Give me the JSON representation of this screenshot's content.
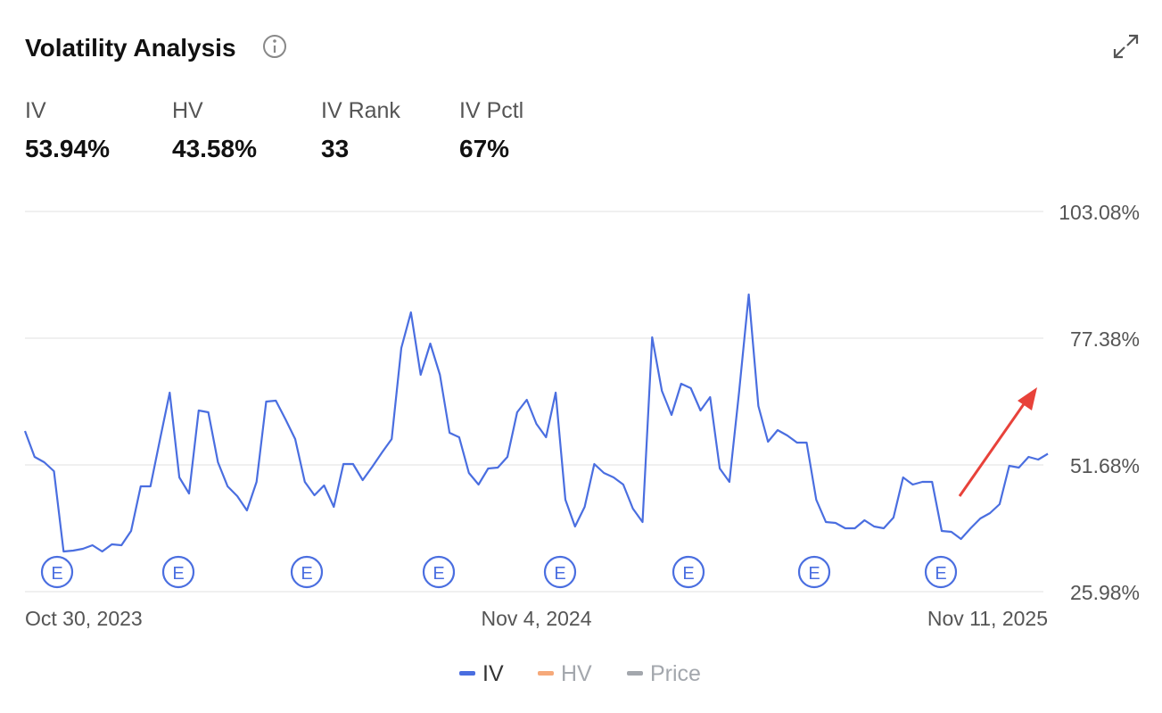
{
  "header": {
    "title": "Volatility Analysis"
  },
  "stats": [
    {
      "label": "IV",
      "value": "53.94%"
    },
    {
      "label": "HV",
      "value": "43.58%"
    },
    {
      "label": "IV Rank",
      "value": "33"
    },
    {
      "label": "IV Pctl",
      "value": "67%"
    }
  ],
  "chart_data": {
    "type": "line",
    "categories": [
      "Oct 30, 2023",
      null,
      null,
      null,
      null,
      null,
      null,
      null,
      null,
      null,
      null,
      null,
      null,
      null,
      null,
      null,
      null,
      null,
      null,
      null,
      null,
      null,
      null,
      null,
      null,
      null,
      null,
      null,
      null,
      null,
      null,
      null,
      null,
      null,
      null,
      null,
      null,
      null,
      null,
      null,
      null,
      null,
      null,
      null,
      null,
      null,
      null,
      null,
      null,
      null,
      null,
      null,
      null,
      "Nov 4, 2024",
      null,
      null,
      null,
      null,
      null,
      null,
      null,
      null,
      null,
      null,
      null,
      null,
      null,
      null,
      null,
      null,
      null,
      null,
      null,
      null,
      null,
      null,
      null,
      null,
      null,
      null,
      null,
      null,
      null,
      null,
      null,
      null,
      null,
      null,
      null,
      null,
      null,
      null,
      null,
      null,
      null,
      null,
      null,
      null,
      null,
      null,
      null,
      null,
      null,
      null,
      null,
      null,
      "Nov 11, 2025"
    ],
    "series": [
      {
        "name": "IV",
        "color": "#4a6ee0",
        "values": [
          58.56,
          53.31,
          52.22,
          50.41,
          34.12,
          34.31,
          34.67,
          35.39,
          34.12,
          35.57,
          35.39,
          38.29,
          47.34,
          47.34,
          56.93,
          66.34,
          49.15,
          45.89,
          62.72,
          62.36,
          52.22,
          47.34,
          45.35,
          42.45,
          48.24,
          64.53,
          64.71,
          60.91,
          56.93,
          48.24,
          45.53,
          47.52,
          43.17,
          51.86,
          51.86,
          48.6,
          51.32,
          54.22,
          56.93,
          75.39,
          82.63,
          69.96,
          76.3,
          69.96,
          58.2,
          57.29,
          50.05,
          47.7,
          50.96,
          51.14,
          53.31,
          62.36,
          64.89,
          60.01,
          57.29,
          66.34,
          44.62,
          39.19,
          43.17,
          51.86,
          50.05,
          49.15,
          47.7,
          42.81,
          40.1,
          77.56,
          66.7,
          61.82,
          68.15,
          67.25,
          62.72,
          65.44,
          50.96,
          48.24,
          66.34,
          86.25,
          63.63,
          56.39,
          58.74,
          57.65,
          56.21,
          56.21,
          44.62,
          40.1,
          39.92,
          38.83,
          38.83,
          40.46,
          39.19,
          38.83,
          41.0,
          49.15,
          47.7,
          48.24,
          48.24,
          38.29,
          38.11,
          36.66,
          38.83,
          40.82,
          41.91,
          43.72,
          51.5,
          51.14,
          53.31,
          52.77,
          53.94
        ]
      }
    ],
    "ylim": [
      25.98,
      103.08
    ],
    "yticks": [
      {
        "value": 25.98,
        "label": "25.98%"
      },
      {
        "value": 51.68,
        "label": "51.68%"
      },
      {
        "value": 77.38,
        "label": "77.38%"
      },
      {
        "value": 103.08,
        "label": "103.08%"
      }
    ],
    "grid": true,
    "earnings_label": "E",
    "legend": [
      {
        "name": "IV",
        "color": "#4a6ee0",
        "active": true
      },
      {
        "name": "HV",
        "color": "#f6a97a",
        "active": false
      },
      {
        "name": "Price",
        "color": "#a3a7ad",
        "active": false
      }
    ]
  }
}
